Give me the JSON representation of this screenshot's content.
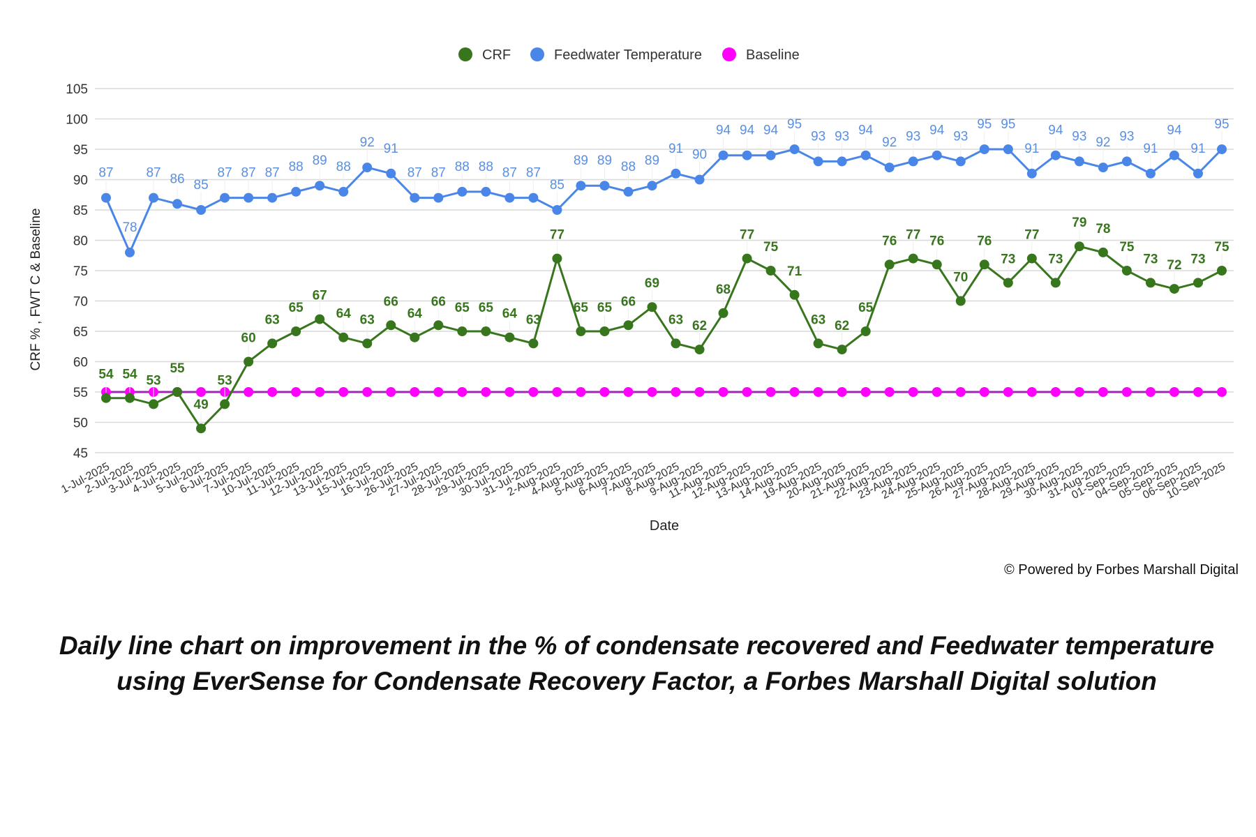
{
  "chart_data": {
    "type": "line",
    "xlabel": "Date",
    "ylabel": "CRF % , FWT C & Baseline",
    "ylim": [
      45,
      105
    ],
    "yticks": [
      45,
      50,
      55,
      60,
      65,
      70,
      75,
      80,
      85,
      90,
      95,
      100,
      105
    ],
    "grid": true,
    "legend_position": "top",
    "categories": [
      "1-Jul-2025",
      "2-Jul-2025",
      "3-Jul-2025",
      "4-Jul-2025",
      "5-Jul-2025",
      "6-Jul-2025",
      "7-Jul-2025",
      "10-Jul-2025",
      "11-Jul-2025",
      "12-Jul-2025",
      "13-Jul-2025",
      "15-Jul-2025",
      "16-Jul-2025",
      "26-Jul-2025",
      "27-Jul-2025",
      "28-Jul-2025",
      "29-Jul-2025",
      "30-Jul-2025",
      "31-Jul-2025",
      "2-Aug-2025",
      "4-Aug-2025",
      "5-Aug-2025",
      "6-Aug-2025",
      "7-Aug-2025",
      "8-Aug-2025",
      "9-Aug-2025",
      "11-Aug-2025",
      "12-Aug-2025",
      "13-Aug-2025",
      "14-Aug-2025",
      "19-Aug-2025",
      "20-Aug-2025",
      "21-Aug-2025",
      "22-Aug-2025",
      "23-Aug-2025",
      "24-Aug-2025",
      "25-Aug-2025",
      "26-Aug-2025",
      "27-Aug-2025",
      "28-Aug-2025",
      "29-Aug-2025",
      "30-Aug-2025",
      "31-Aug-2025",
      "01-Sep-2025",
      "04-Sep-2025",
      "05-Sep-2025",
      "06-Sep-2025",
      "10-Sep-2025"
    ],
    "series": [
      {
        "name": "CRF",
        "color": "#38761d",
        "label_color": "#38761d",
        "values": [
          54,
          54,
          53,
          55,
          49,
          53,
          60,
          63,
          65,
          67,
          64,
          63,
          66,
          64,
          66,
          65,
          65,
          64,
          63,
          77,
          65,
          65,
          66,
          69,
          63,
          62,
          68,
          77,
          75,
          71,
          63,
          62,
          65,
          76,
          77,
          76,
          70,
          76,
          73,
          77,
          73,
          79,
          78,
          75,
          73,
          72,
          73,
          75
        ]
      },
      {
        "name": "Feedwater Temperature",
        "color": "#4a86e8",
        "label_color": "#5b8fe0",
        "values": [
          87,
          78,
          87,
          86,
          85,
          87,
          87,
          87,
          88,
          89,
          88,
          92,
          91,
          87,
          87,
          88,
          88,
          87,
          87,
          85,
          89,
          89,
          88,
          89,
          91,
          90,
          94,
          94,
          94,
          95,
          93,
          93,
          94,
          92,
          93,
          94,
          93,
          95,
          95,
          91,
          94,
          93,
          92,
          93,
          91,
          94,
          91,
          95
        ]
      },
      {
        "name": "Baseline",
        "color": "#ff00ff",
        "line_color": "#9c27b0",
        "values": [
          55,
          55,
          55,
          55,
          55,
          55,
          55,
          55,
          55,
          55,
          55,
          55,
          55,
          55,
          55,
          55,
          55,
          55,
          55,
          55,
          55,
          55,
          55,
          55,
          55,
          55,
          55,
          55,
          55,
          55,
          55,
          55,
          55,
          55,
          55,
          55,
          55,
          55,
          55,
          55,
          55,
          55,
          55,
          55,
          55,
          55,
          55,
          55
        ]
      }
    ]
  },
  "footer": {
    "powered_by": "© Powered by Forbes Marshall Digital",
    "caption_line1": "Daily line chart on improvement in the % of condensate recovered and Feedwater temperature",
    "caption_line2": "using EverSense for Condensate Recovery Factor, a Forbes Marshall Digital solution"
  }
}
